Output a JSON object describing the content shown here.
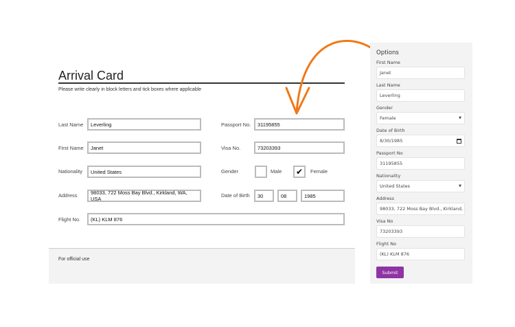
{
  "card": {
    "title": "Arrival Card",
    "instructions": "Please write clearly in block letters and tick boxes where applicable",
    "last_name": {
      "label": "Last Name",
      "value": "Leverling"
    },
    "first_name": {
      "label": "First Name",
      "value": "Janet"
    },
    "nationality": {
      "label": "Nationality",
      "value": "United States"
    },
    "address": {
      "label": "Address",
      "value": "98033, 722 Moss Bay Blvd., Kirkland, WA, USA"
    },
    "flight": {
      "label": "Flight No.",
      "value": "(KL) KLM 876"
    },
    "passport": {
      "label": "Passport No.",
      "value": "31195855"
    },
    "visa": {
      "label": "Visa No.",
      "value": "73203393"
    },
    "gender": {
      "label": "Gender",
      "male": "Male",
      "female": "Female",
      "female_mark": "✔",
      "selected": "Female"
    },
    "dob": {
      "label": "Date of Birth",
      "day": "30",
      "month": "08",
      "year": "1985"
    },
    "official_use": "For official use"
  },
  "annotation": {
    "arrow_color": "#f07818"
  },
  "options": {
    "title": "Options",
    "fields": [
      {
        "label": "First Name",
        "value": "Janet"
      },
      {
        "label": "Last Name",
        "value": "Leverling"
      },
      {
        "label": "Gender",
        "value": "Female",
        "icon": "caret-down-icon"
      },
      {
        "label": "Date of Birth",
        "value": "8/30/1985",
        "icon": "calendar-icon"
      },
      {
        "label": "Passport No",
        "value": "31195855"
      },
      {
        "label": "Nationality",
        "value": "United States",
        "icon": "caret-down-icon"
      },
      {
        "label": "Address",
        "value": "98033, 722 Moss Bay Blvd., Kirkland, W."
      },
      {
        "label": "Visa No",
        "value": "73203393"
      },
      {
        "label": "Flight No",
        "value": "(KL) KLM 876"
      }
    ],
    "submit_label": "Submit",
    "submit_color": "#8e34a3"
  }
}
